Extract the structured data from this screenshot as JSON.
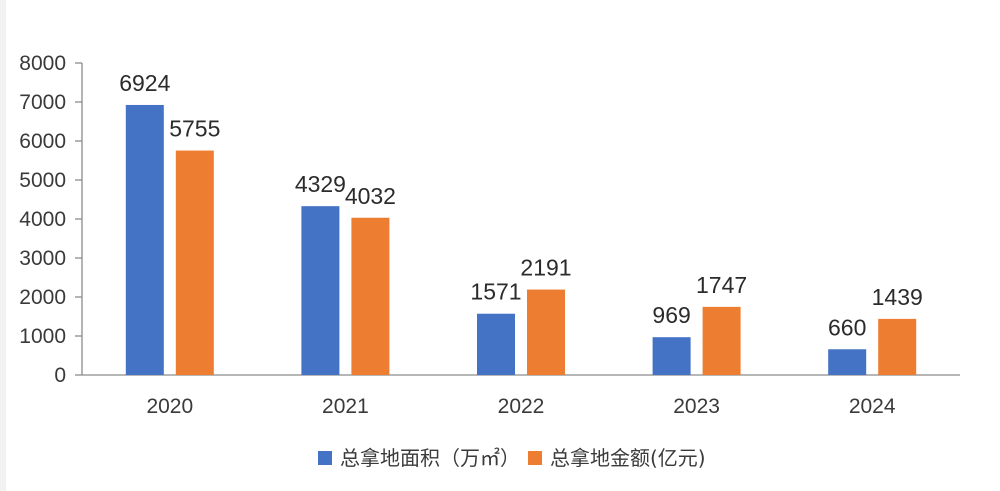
{
  "chart_data": {
    "type": "bar",
    "categories": [
      "2020",
      "2021",
      "2022",
      "2023",
      "2024"
    ],
    "series": [
      {
        "name": "总拿地面积（万㎡）",
        "color": "#4472c4",
        "values": [
          6924,
          4329,
          1571,
          969,
          660
        ]
      },
      {
        "name": "总拿地金额(亿元)",
        "color": "#ed7d31",
        "values": [
          5755,
          4032,
          2191,
          1747,
          1439
        ]
      }
    ],
    "ylim": [
      0,
      8000
    ],
    "yticks": [
      0,
      1000,
      2000,
      3000,
      4000,
      5000,
      6000,
      7000,
      8000
    ],
    "data_labels": true,
    "grid": false,
    "legend": "bottom-center",
    "title": "",
    "xlabel": "",
    "ylabel": ""
  }
}
